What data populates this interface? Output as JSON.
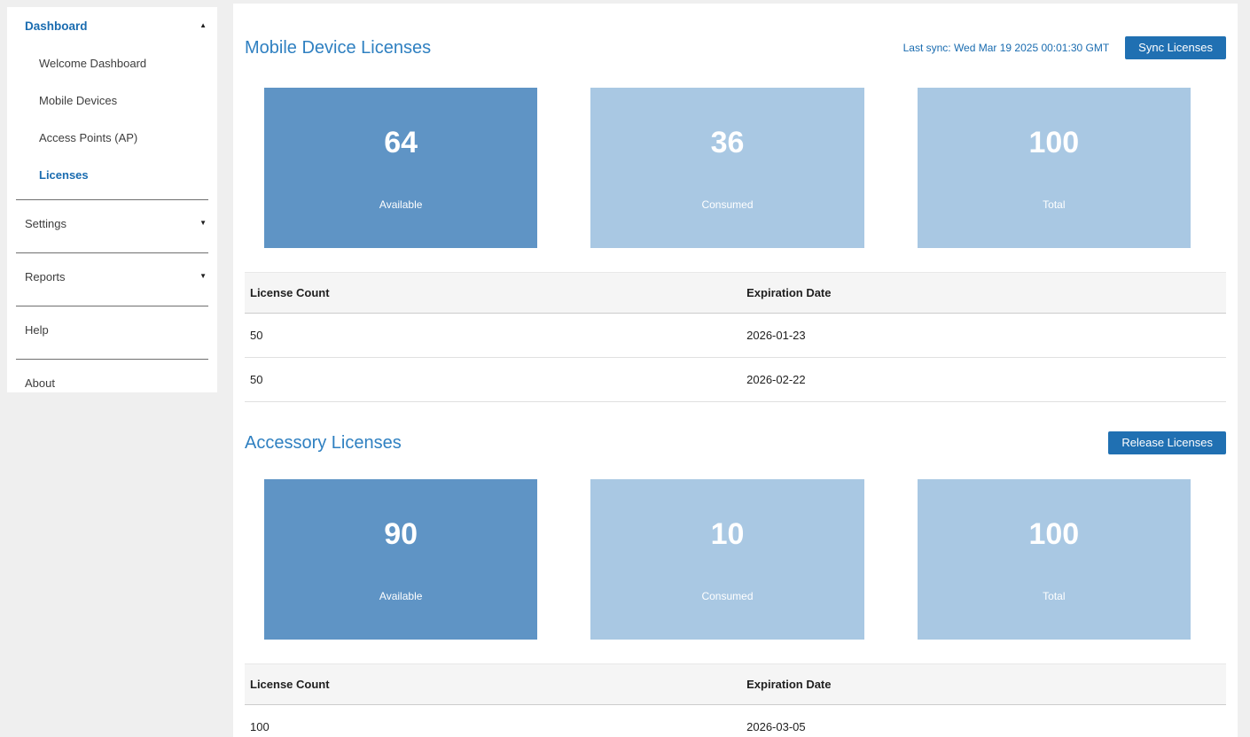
{
  "colors": {
    "page_bg": "#efefef",
    "panel_bg": "#ffffff",
    "accent_blue": "#2070b2",
    "heading_blue": "#2f80c1",
    "link_blue": "#1a6cb0",
    "card_dark": "#5f94c5",
    "card_light": "#a9c8e3"
  },
  "icons": {
    "caret_up": "▲",
    "caret_down": "▼"
  },
  "sidebar": {
    "dashboard": {
      "label": "Dashboard"
    },
    "sub_items": [
      {
        "label": "Welcome Dashboard",
        "active": false
      },
      {
        "label": "Mobile Devices",
        "active": false
      },
      {
        "label": "Access Points (AP)",
        "active": false
      },
      {
        "label": "Licenses",
        "active": true
      }
    ],
    "settings": {
      "label": "Settings"
    },
    "reports": {
      "label": "Reports"
    },
    "help": {
      "label": "Help"
    },
    "about": {
      "label": "About"
    }
  },
  "main": {
    "sections": [
      {
        "title": "Mobile Device Licenses",
        "last_sync": "Last sync: Wed Mar 19 2025 00:01:30 GMT",
        "button_label": "Sync Licenses",
        "cards": [
          {
            "value": "64",
            "label": "Available"
          },
          {
            "value": "36",
            "label": "Consumed"
          },
          {
            "value": "100",
            "label": "Total"
          }
        ],
        "table": {
          "headers": [
            "License Count",
            "Expiration Date"
          ],
          "rows": [
            [
              "50",
              "2026-01-23"
            ],
            [
              "50",
              "2026-02-22"
            ]
          ]
        }
      },
      {
        "title": "Accessory Licenses",
        "button_label": "Release Licenses",
        "cards": [
          {
            "value": "90",
            "label": "Available"
          },
          {
            "value": "10",
            "label": "Consumed"
          },
          {
            "value": "100",
            "label": "Total"
          }
        ],
        "table": {
          "headers": [
            "License Count",
            "Expiration Date"
          ],
          "rows": [
            [
              "100",
              "2026-03-05"
            ]
          ]
        }
      }
    ]
  }
}
